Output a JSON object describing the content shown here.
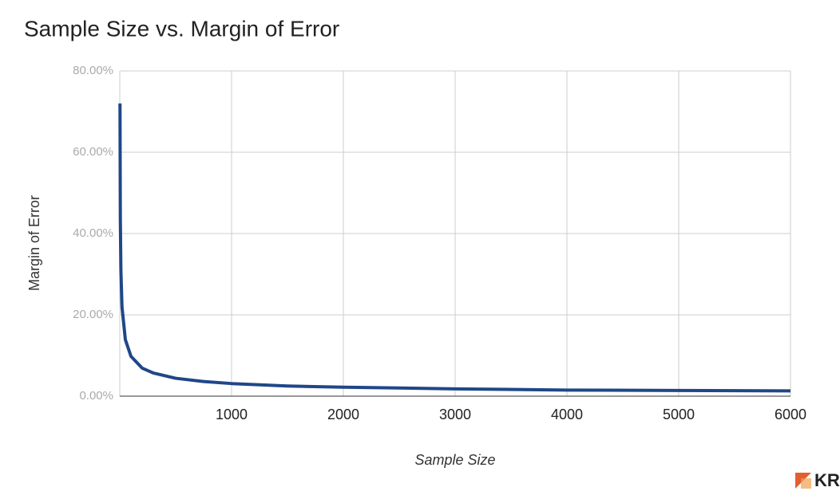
{
  "chart_data": {
    "type": "line",
    "title": "Sample Size vs. Margin of Error",
    "x_label": "Sample Size",
    "y_label": "Margin of Error",
    "x": [
      2,
      5,
      10,
      20,
      50,
      100,
      200,
      300,
      500,
      750,
      1000,
      1500,
      2000,
      3000,
      4000,
      5000,
      6000
    ],
    "series": [
      {
        "name": "Margin of Error",
        "color": "#1f4788",
        "values": [
          72,
          43.8,
          31,
          21.9,
          13.9,
          9.8,
          6.9,
          5.7,
          4.4,
          3.6,
          3.1,
          2.5,
          2.2,
          1.8,
          1.5,
          1.4,
          1.3
        ]
      }
    ],
    "xlim": [
      0,
      6000
    ],
    "xticks": [
      1000,
      2000,
      3000,
      4000,
      5000,
      6000
    ],
    "ylim": [
      0,
      80
    ],
    "yticks": [
      {
        "value": 0,
        "label": "0.00%"
      },
      {
        "value": 20,
        "label": "20.00%"
      },
      {
        "value": 40,
        "label": "40.00%"
      },
      {
        "value": 60,
        "label": "60.00%"
      },
      {
        "value": 80,
        "label": "80.00%"
      }
    ],
    "grid": true,
    "logo": "KR"
  }
}
